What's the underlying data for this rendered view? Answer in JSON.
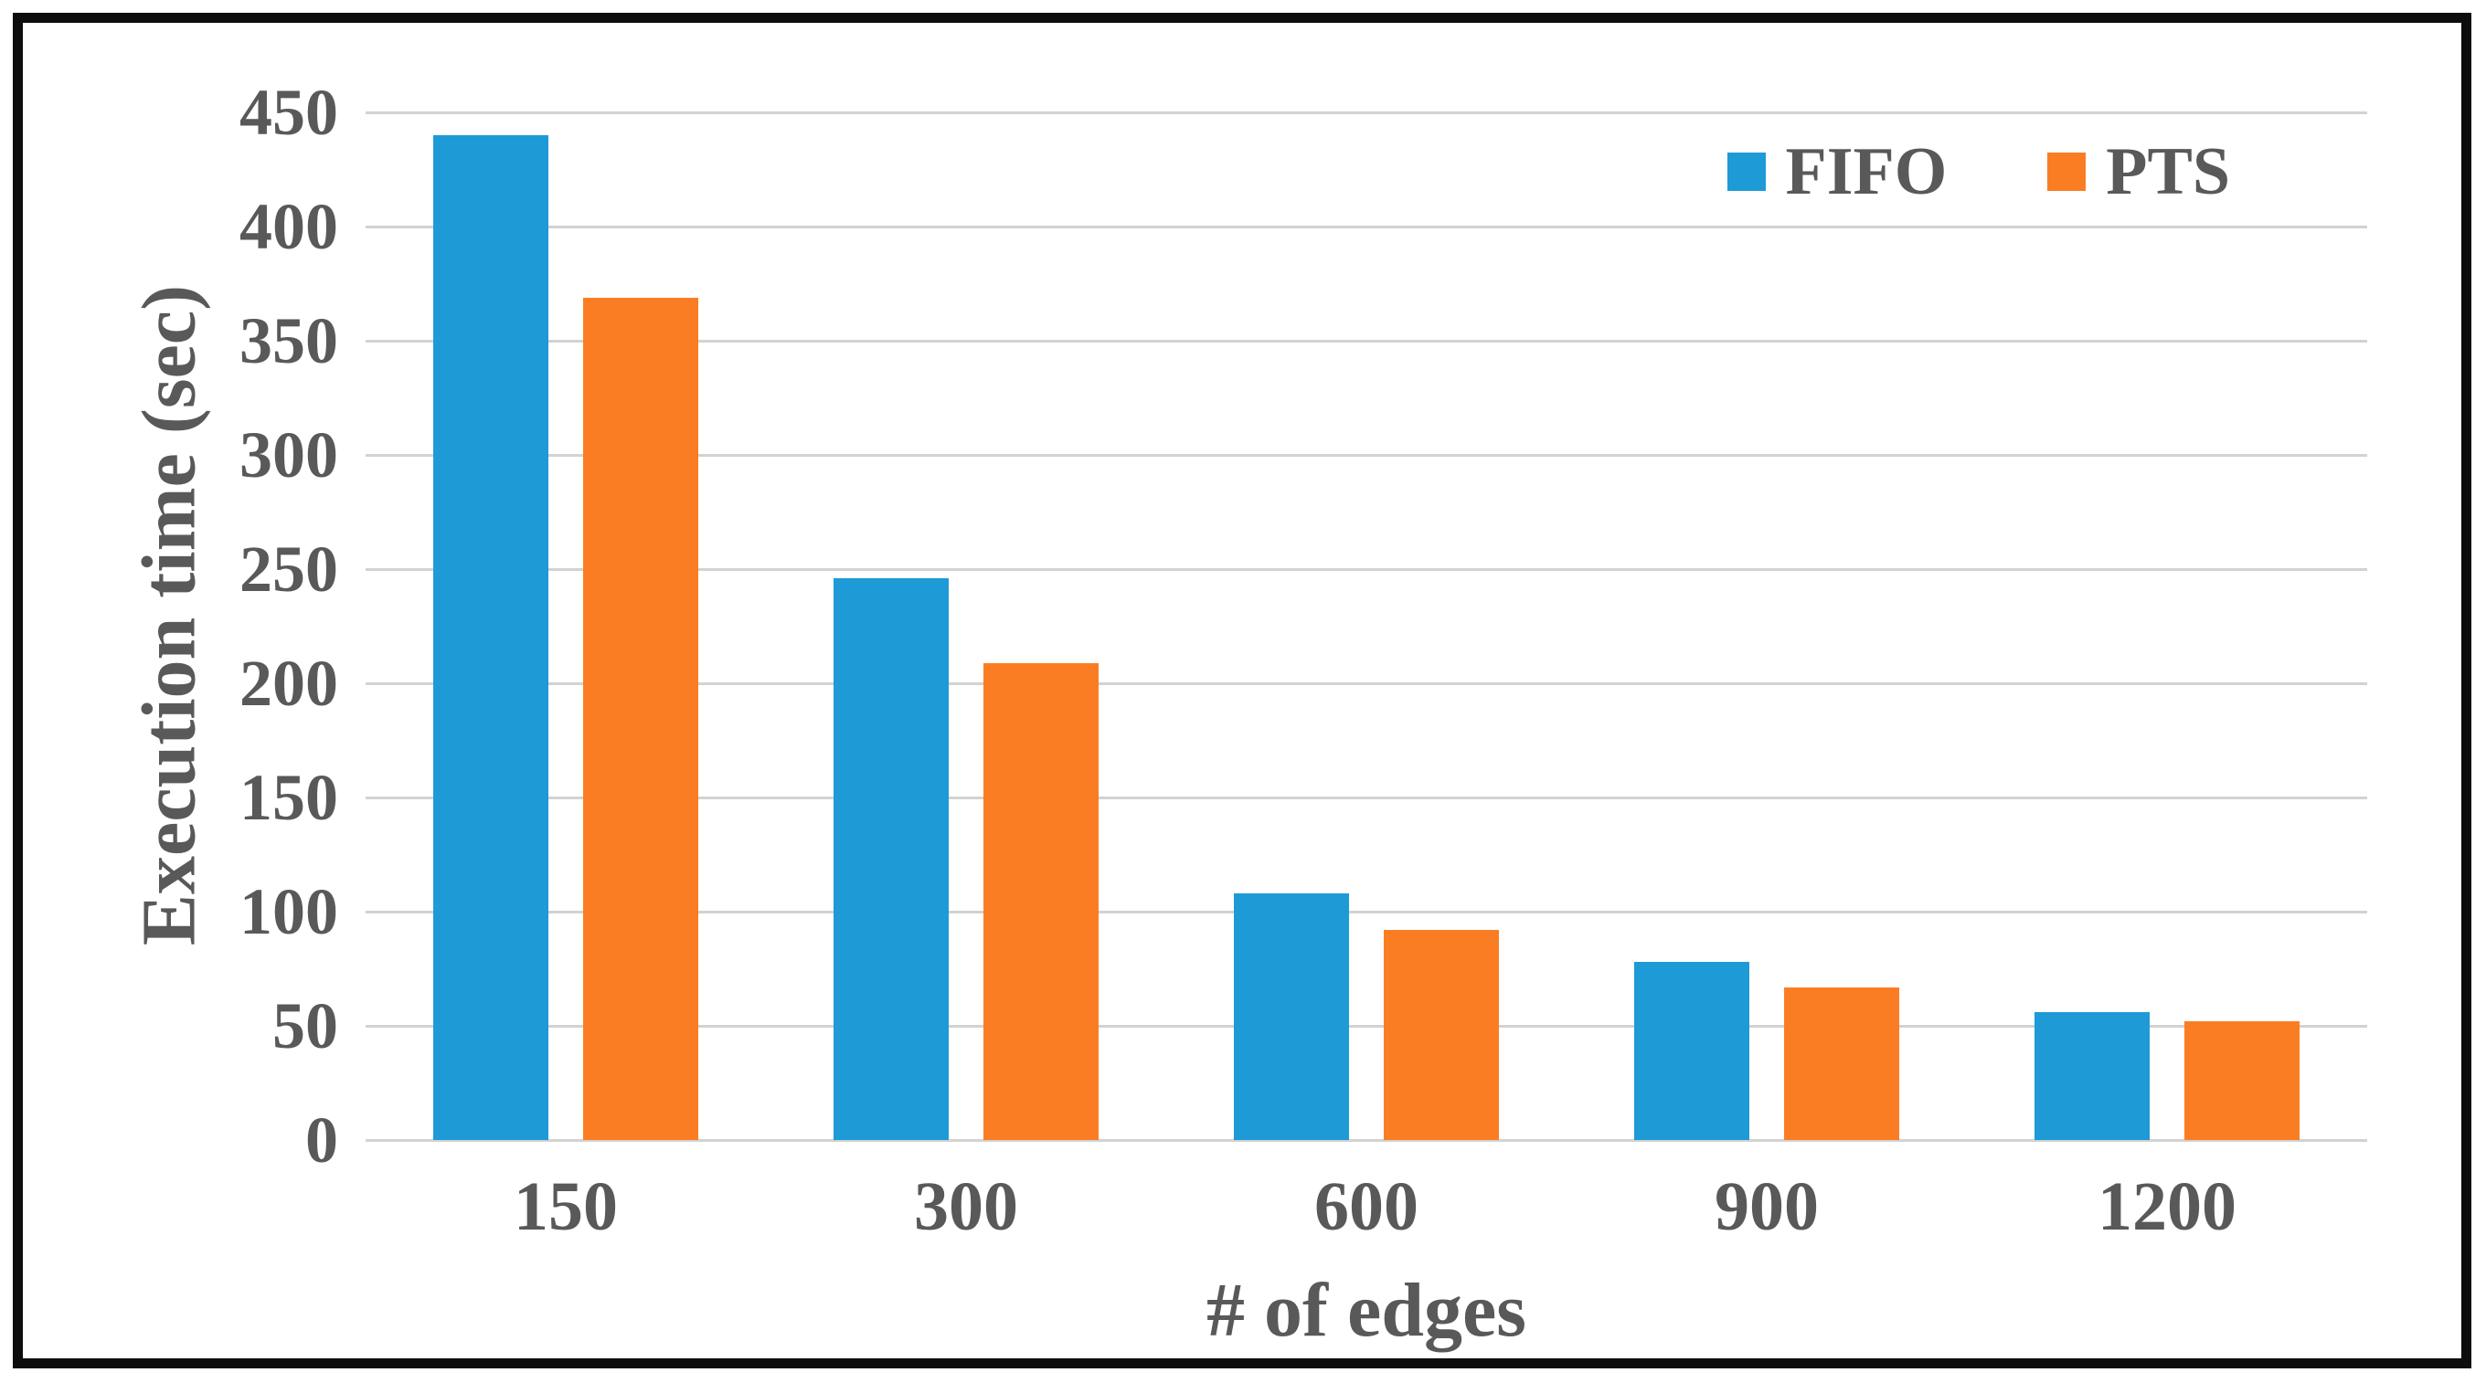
{
  "figure": {
    "background": "#ffffff",
    "frame_color": "#0d0d0d"
  },
  "chart_data": {
    "type": "bar",
    "title": "",
    "xlabel": "# of edges",
    "ylabel": "Execution time (sec)",
    "categories": [
      "150",
      "300",
      "600",
      "900",
      "1200"
    ],
    "series": [
      {
        "name": "FIFO",
        "color": "#1E9AD6",
        "values": [
          440,
          246,
          108,
          78,
          56
        ]
      },
      {
        "name": "PTS",
        "color": "#FB7D23",
        "values": [
          369,
          209,
          92,
          67,
          52
        ]
      }
    ],
    "value_unit": "sec",
    "ylim": [
      0,
      450
    ],
    "ytick_step": 50,
    "grid": true,
    "gridline_color": "#d2d2d2",
    "text_color": "#595959",
    "legend_position": "top-right-inside"
  }
}
